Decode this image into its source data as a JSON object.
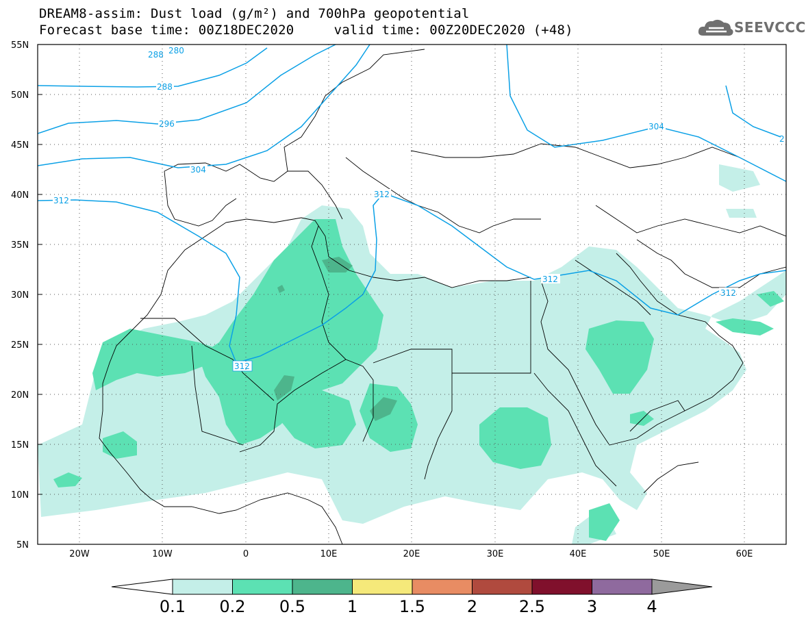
{
  "header": {
    "title_line1": "DREAM8-assim: Dust load (g/m²) and 700hPa geopotential",
    "title_line2": "Forecast base time: 00Z18DEC2020     valid time: 00Z20DEC2020 (+48)"
  },
  "logo": {
    "text": "SEEVCCC",
    "icon": "cloud-icon"
  },
  "map": {
    "lat_labels": [
      "55N",
      "50N",
      "45N",
      "40N",
      "35N",
      "30N",
      "25N",
      "20N",
      "15N",
      "10N",
      "5N"
    ],
    "lon_labels": [
      "20W",
      "10W",
      "0",
      "10E",
      "20E",
      "30E",
      "40E",
      "50E",
      "60E"
    ],
    "contour_labels": [
      {
        "text": "288"
      },
      {
        "text": "280"
      },
      {
        "text": "288"
      },
      {
        "text": "296"
      },
      {
        "text": "304"
      },
      {
        "text": "312"
      },
      {
        "text": "312"
      },
      {
        "text": "312"
      },
      {
        "text": "312"
      },
      {
        "text": "312"
      },
      {
        "text": "304"
      },
      {
        "text": "2"
      }
    ],
    "colors": {
      "contour_line": "#0aa0e6",
      "dust_0_1": "#c4efe8",
      "dust_0_2": "#5ce1b3",
      "dust_0_5": "#4db58c",
      "border": "#000000"
    }
  },
  "colorbar": {
    "labels": [
      "0.1",
      "0.2",
      "0.5",
      "1",
      "1.5",
      "2",
      "2.5",
      "3",
      "4"
    ],
    "colors": [
      "#c4efe8",
      "#5ce1b3",
      "#4db58c",
      "#f5e97a",
      "#e88c63",
      "#b04a3e",
      "#80102c",
      "#8f6a9e"
    ],
    "under_color": "#ffffff",
    "over_color": "#9b9b9b"
  }
}
